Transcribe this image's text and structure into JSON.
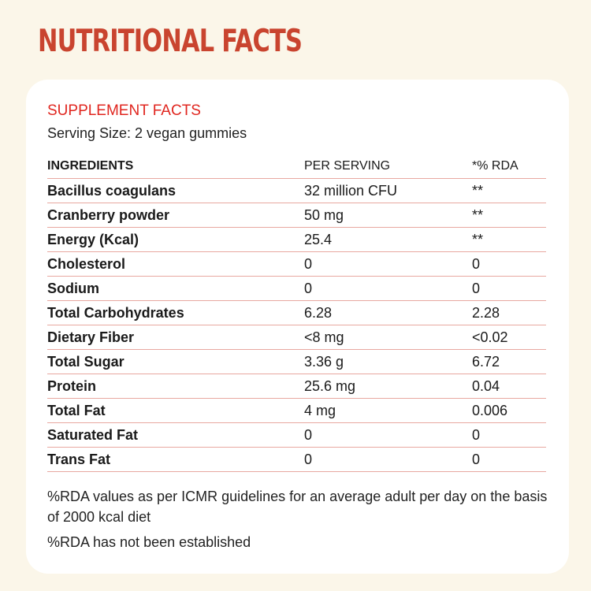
{
  "page": {
    "title": "NUTRITIONAL FACTS"
  },
  "card": {
    "section_title": "SUPPLEMENT FACTS",
    "serving_size": "Serving Size: 2 vegan gummies",
    "table": {
      "headers": [
        "INGREDIENTS",
        "PER SERVING",
        "*% RDA"
      ],
      "rows": [
        {
          "ingredient": "Bacillus coagulans",
          "per_serving": "32 million CFU",
          "rda": "**"
        },
        {
          "ingredient": "Cranberry powder",
          "per_serving": "50 mg",
          "rda": "**"
        },
        {
          "ingredient": "Energy (Kcal)",
          "per_serving": "25.4",
          "rda": "**"
        },
        {
          "ingredient": "Cholesterol",
          "per_serving": "0",
          "rda": "0"
        },
        {
          "ingredient": "Sodium",
          "per_serving": "0",
          "rda": "0"
        },
        {
          "ingredient": "Total Carbohydrates",
          "per_serving": "6.28",
          "rda": "2.28"
        },
        {
          "ingredient": "Dietary Fiber",
          "per_serving": "<8 mg",
          "rda": "<0.02"
        },
        {
          "ingredient": "Total Sugar",
          "per_serving": "3.36 g",
          "rda": "6.72"
        },
        {
          "ingredient": "Protein",
          "per_serving": "25.6 mg",
          "rda": "0.04"
        },
        {
          "ingredient": "Total Fat",
          "per_serving": "4 mg",
          "rda": "0.006"
        },
        {
          "ingredient": "Saturated Fat",
          "per_serving": "0",
          "rda": "0"
        },
        {
          "ingredient": "Trans Fat",
          "per_serving": "0",
          "rda": "0"
        }
      ]
    },
    "notes": [
      "%RDA values as per ICMR guidelines for an average adult per day on the basis of 2000 kcal diet",
      "%RDA has not been established"
    ]
  },
  "colors": {
    "background": "#fbf6e9",
    "title": "#c9442f",
    "section_title": "#e0261f",
    "card": "#ffffff",
    "row_divider": "#e8a8a0"
  }
}
